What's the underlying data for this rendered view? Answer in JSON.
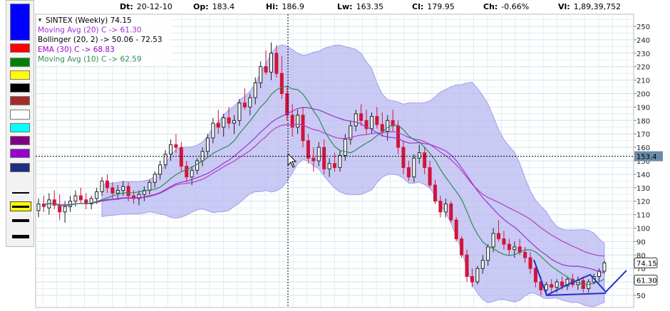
{
  "header": {
    "dt_label": "Dt:",
    "dt_value": "20-12-10",
    "op_label": "Op:",
    "op_value": "183.4",
    "hi_label": "Hi:",
    "hi_value": "186.9",
    "lw_label": "Lw:",
    "lw_value": "163.35",
    "cl_label": "Cl:",
    "cl_value": "179.95",
    "ch_label": "Ch:",
    "ch_value": "-0.66%",
    "vl_label": "Vl:",
    "vl_value": "1,89,39,752"
  },
  "palette": {
    "colors": [
      "#0000ff",
      "#ff0000",
      "#008000",
      "#ffff00",
      "#000000",
      "#a52a2a",
      "#ffffff",
      "#00ffff",
      "#800080",
      "#9900cc",
      "#1f2f7f"
    ],
    "selected_line_index": 1
  },
  "chart_data": {
    "type": "candlestick",
    "legend": [
      {
        "text": "SINTEX (Weekly) 74.15",
        "color": "#000000"
      },
      {
        "text": "Moving Avg (20) C -> 61.30",
        "color": "#9933cc"
      },
      {
        "text": "Bollinger (20, 2) -> 50.06 - 72.53",
        "color": "#000000"
      },
      {
        "text": "EMA (30) C -> 68.83",
        "color": "#9900cc"
      },
      {
        "text": "Moving Avg (10) C -> 62.59",
        "color": "#2e8b57"
      }
    ],
    "ylim": [
      40,
      260
    ],
    "yticks": [
      50,
      60,
      70,
      80,
      90,
      100,
      110,
      120,
      130,
      140,
      150,
      160,
      170,
      180,
      190,
      200,
      210,
      220,
      230,
      240,
      250
    ],
    "grid": true,
    "crosshair_value": "153.4",
    "price_labels": [
      {
        "text": "74.15",
        "value": 74.15
      },
      {
        "text": "61.30",
        "value": 61.3
      }
    ],
    "colors": {
      "up": "#222222",
      "down": "#d2143a",
      "band_fill": "#b8b8f2",
      "band_edge": "#a0a0e8",
      "ma20": "#9933cc",
      "ema30": "#b040c0",
      "ma10": "#2e8b57",
      "trendline": "#2233cc"
    },
    "ohlc": [
      [
        113,
        122,
        108,
        118
      ],
      [
        118,
        124,
        112,
        116
      ],
      [
        115,
        126,
        110,
        121
      ],
      [
        121,
        128,
        114,
        117
      ],
      [
        117,
        125,
        106,
        112
      ],
      [
        112,
        120,
        104,
        116
      ],
      [
        116,
        124,
        112,
        120
      ],
      [
        120,
        128,
        116,
        124
      ],
      [
        124,
        130,
        118,
        121
      ],
      [
        121,
        126,
        114,
        118
      ],
      [
        118,
        124,
        114,
        122
      ],
      [
        122,
        130,
        118,
        127
      ],
      [
        127,
        138,
        124,
        135
      ],
      [
        135,
        140,
        126,
        130
      ],
      [
        130,
        134,
        122,
        126
      ],
      [
        126,
        132,
        121,
        128
      ],
      [
        128,
        135,
        124,
        131
      ],
      [
        131,
        134,
        120,
        124
      ],
      [
        124,
        128,
        118,
        122
      ],
      [
        122,
        128,
        117,
        125
      ],
      [
        125,
        131,
        120,
        128
      ],
      [
        128,
        136,
        125,
        134
      ],
      [
        134,
        142,
        130,
        140
      ],
      [
        140,
        150,
        136,
        147
      ],
      [
        147,
        158,
        144,
        155
      ],
      [
        155,
        166,
        150,
        162
      ],
      [
        162,
        170,
        156,
        160
      ],
      [
        160,
        164,
        142,
        146
      ],
      [
        146,
        150,
        134,
        138
      ],
      [
        138,
        146,
        132,
        143
      ],
      [
        143,
        152,
        140,
        150
      ],
      [
        150,
        160,
        146,
        157
      ],
      [
        157,
        170,
        154,
        167
      ],
      [
        167,
        182,
        163,
        178
      ],
      [
        178,
        188,
        170,
        175
      ],
      [
        175,
        185,
        168,
        182
      ],
      [
        182,
        190,
        174,
        178
      ],
      [
        178,
        184,
        170,
        180
      ],
      [
        180,
        196,
        176,
        193
      ],
      [
        193,
        204,
        188,
        190
      ],
      [
        190,
        200,
        184,
        197
      ],
      [
        197,
        212,
        192,
        208
      ],
      [
        208,
        224,
        204,
        220
      ],
      [
        220,
        232,
        214,
        216
      ],
      [
        216,
        238,
        210,
        230
      ],
      [
        230,
        236,
        212,
        215
      ],
      [
        215,
        228,
        196,
        200
      ],
      [
        200,
        206,
        180,
        184
      ],
      [
        184,
        192,
        168,
        175
      ],
      [
        175,
        188,
        170,
        184
      ],
      [
        184,
        190,
        160,
        165
      ],
      [
        165,
        170,
        148,
        152
      ],
      [
        152,
        160,
        142,
        150
      ],
      [
        150,
        164,
        146,
        160
      ],
      [
        160,
        166,
        140,
        144
      ],
      [
        144,
        152,
        138,
        148
      ],
      [
        148,
        156,
        142,
        145
      ],
      [
        145,
        158,
        142,
        154
      ],
      [
        154,
        170,
        150,
        166
      ],
      [
        166,
        180,
        162,
        176
      ],
      [
        176,
        188,
        172,
        185
      ],
      [
        185,
        192,
        176,
        180
      ],
      [
        180,
        188,
        170,
        174
      ],
      [
        174,
        186,
        170,
        183
      ],
      [
        183,
        190,
        174,
        177
      ],
      [
        177,
        186,
        168,
        172
      ],
      [
        172,
        184,
        165,
        180
      ],
      [
        180,
        188,
        172,
        176
      ],
      [
        176,
        180,
        155,
        160
      ],
      [
        160,
        165,
        140,
        145
      ],
      [
        145,
        150,
        135,
        138
      ],
      [
        138,
        155,
        134,
        152
      ],
      [
        152,
        162,
        148,
        156
      ],
      [
        156,
        160,
        140,
        145
      ],
      [
        145,
        150,
        130,
        132
      ],
      [
        132,
        136,
        118,
        120
      ],
      [
        120,
        124,
        108,
        112
      ],
      [
        112,
        122,
        108,
        118
      ],
      [
        118,
        120,
        104,
        106
      ],
      [
        106,
        108,
        90,
        92
      ],
      [
        92,
        94,
        78,
        80
      ],
      [
        80,
        84,
        60,
        64
      ],
      [
        64,
        70,
        56,
        60
      ],
      [
        60,
        72,
        58,
        70
      ],
      [
        70,
        80,
        66,
        76
      ],
      [
        76,
        88,
        72,
        86
      ],
      [
        86,
        100,
        82,
        96
      ],
      [
        96,
        106,
        90,
        92
      ],
      [
        92,
        98,
        84,
        88
      ],
      [
        88,
        92,
        80,
        84
      ],
      [
        84,
        90,
        78,
        86
      ],
      [
        86,
        92,
        80,
        82
      ],
      [
        82,
        86,
        74,
        78
      ],
      [
        78,
        82,
        66,
        70
      ],
      [
        70,
        74,
        56,
        60
      ],
      [
        60,
        64,
        50,
        54
      ],
      [
        54,
        60,
        50,
        58
      ],
      [
        58,
        62,
        52,
        56
      ],
      [
        56,
        62,
        52,
        60
      ],
      [
        60,
        64,
        54,
        57
      ],
      [
        57,
        64,
        54,
        62
      ],
      [
        62,
        66,
        56,
        58
      ],
      [
        58,
        64,
        54,
        61
      ],
      [
        61,
        64,
        52,
        55
      ],
      [
        55,
        62,
        52,
        60
      ],
      [
        60,
        66,
        58,
        64
      ],
      [
        64,
        70,
        60,
        68
      ],
      [
        68,
        76,
        66,
        74.15
      ]
    ]
  }
}
